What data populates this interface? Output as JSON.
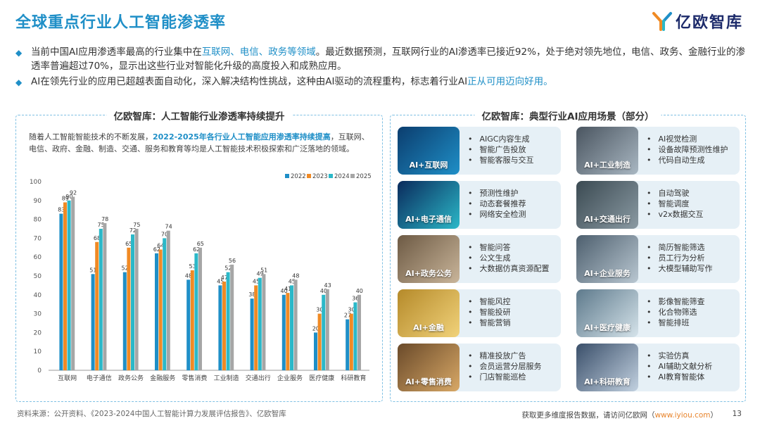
{
  "title": "全球重点行业人工智能渗透率",
  "logo": "亿欧智库",
  "bullets": [
    {
      "parts": [
        {
          "t": "当前中国AI应用渗透率最高的行业集中在",
          "hl": false
        },
        {
          "t": "互联网、电信、政务等领域",
          "hl": true
        },
        {
          "t": "。最近数据预测，互联网行业的AI渗透率已接近92%，处于绝对领先地位，电信、政务、金融行业的渗透率普遍超过70%，显示出这些行业对智能化升级的高度投入和成熟应用。",
          "hl": false
        }
      ]
    },
    {
      "parts": [
        {
          "t": "AI在领先行业的应用已超越表面自动化，深入解决结构性挑战，这种由AI驱动的流程重构，标志着行业AI",
          "hl": false
        },
        {
          "t": "正从可用迈向好用。",
          "hl": true
        }
      ]
    }
  ],
  "left_panel": {
    "title": "亿欧智库：人工智能行业渗透率持续提升",
    "intro_a": "随着人工智能智能技术的不断发展，",
    "intro_hl": "2022-2025年各行业人工智能应用渗透率持续提高",
    "intro_b": "，互联网、电信、政府、金融、制造、交通、服务和教育等均是人工智能技术积极探索和广泛落地的领域。"
  },
  "chart_data": {
    "type": "bar",
    "categories": [
      "互联网",
      "电子通信",
      "政务公务",
      "金融服务",
      "零售消费",
      "工业制造",
      "交通出行",
      "企业服务",
      "医疗健康",
      "科研教育"
    ],
    "series": [
      {
        "name": "2022",
        "color": "#1f8fc7",
        "values": [
          83,
          51,
          52,
          62,
          48,
          45,
          38,
          40,
          20,
          27
        ]
      },
      {
        "name": "2023",
        "color": "#f08a24",
        "values": [
          89,
          68,
          65,
          64,
          53,
          47,
          45,
          41,
          30,
          30
        ]
      },
      {
        "name": "2024",
        "color": "#2bb8c8",
        "values": [
          90,
          75,
          72,
          70,
          62,
          52,
          49,
          45,
          40,
          36
        ]
      },
      {
        "name": "2025",
        "color": "#a6a6a6",
        "values": [
          92,
          78,
          75,
          74,
          65,
          56,
          51,
          48,
          43,
          40
        ]
      }
    ],
    "ylim": [
      0,
      100
    ],
    "yticks": [
      0,
      10,
      20,
      30,
      40,
      50,
      60,
      70,
      80,
      90,
      100
    ],
    "legend": "top-right",
    "grid": false
  },
  "right_panel": {
    "title": "亿欧智库：典型行业AI应用场景（部分）",
    "scenes": [
      {
        "label": "AI+互联网",
        "items": [
          "AIGC内容生成",
          "智能广告投放",
          "智能客服与交互"
        ]
      },
      {
        "label": "AI+工业制造",
        "items": [
          "AI视觉检测",
          "设备故障预测性维护",
          "代码自动生成"
        ]
      },
      {
        "label": "AI+电子通信",
        "items": [
          "预测性维护",
          "动态套餐推荐",
          "网络安全检测"
        ]
      },
      {
        "label": "AI+交通出行",
        "items": [
          "自动驾驶",
          "智能调度",
          "v2x数据交互"
        ]
      },
      {
        "label": "AI+政务公务",
        "items": [
          "智能问答",
          "公文生成",
          "大数据仿真资源配置"
        ]
      },
      {
        "label": "AI+企业服务",
        "items": [
          "简历智能筛选",
          "员工行为分析",
          "大模型辅助写作"
        ]
      },
      {
        "label": "AI+金融",
        "items": [
          "智能风控",
          "智能投研",
          "智能营销"
        ]
      },
      {
        "label": "AI+医疗健康",
        "items": [
          "影像智能筛查",
          "化合物筛选",
          "智能排班"
        ]
      },
      {
        "label": "AI+零售消费",
        "items": [
          "精准投放广告",
          "会员运营分层服务",
          "门店智能巡检"
        ]
      },
      {
        "label": "AI+科研教育",
        "items": [
          "实验仿真",
          "AI辅助文献分析",
          "AI教育智能体"
        ]
      }
    ]
  },
  "footer": {
    "source": "资料来源：公开资料、《2023-2024中国人工智能计算力发展评估报告》、亿欧智库",
    "more_a": "获取更多维度报告数据，请访问亿欧网（",
    "more_link": "www.iyiou.com",
    "more_b": "）",
    "page": "13"
  }
}
